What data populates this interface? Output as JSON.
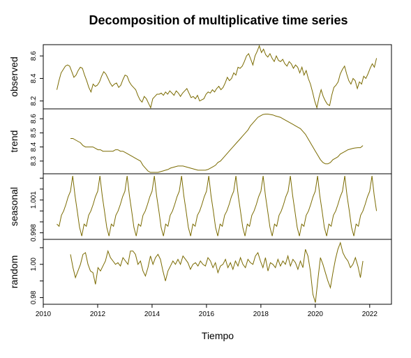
{
  "chart_data": {
    "type": "line",
    "title": "Decomposition of multiplicative time series",
    "xlabel": "Tiempo",
    "line_color": "#7a6a00",
    "x_ticks": [
      2010,
      2012,
      2014,
      2016,
      2018,
      2020,
      2022
    ],
    "xlim": [
      2010,
      2022.8
    ],
    "panels": [
      {
        "name": "observed",
        "ylim": [
          8.13,
          8.7
        ],
        "y_ticks": [
          8.2,
          8.4,
          8.6
        ],
        "y_tick_labels": [
          "8.2",
          "8.4",
          "8.6"
        ],
        "start": 2010.5,
        "end": 2022.25,
        "points": [
          8.3,
          8.38,
          8.45,
          8.48,
          8.51,
          8.52,
          8.51,
          8.46,
          8.41,
          8.43,
          8.47,
          8.5,
          8.49,
          8.43,
          8.38,
          8.32,
          8.28,
          8.35,
          8.33,
          8.34,
          8.37,
          8.42,
          8.46,
          8.44,
          8.4,
          8.36,
          8.33,
          8.35,
          8.36,
          8.32,
          8.34,
          8.39,
          8.43,
          8.42,
          8.37,
          8.34,
          8.32,
          8.3,
          8.25,
          8.21,
          8.19,
          8.24,
          8.22,
          8.18,
          8.14,
          8.22,
          8.24,
          8.26,
          8.26,
          8.27,
          8.25,
          8.28,
          8.26,
          8.29,
          8.27,
          8.25,
          8.29,
          8.27,
          8.24,
          8.27,
          8.29,
          8.31,
          8.27,
          8.23,
          8.24,
          8.22,
          8.25,
          8.2,
          8.21,
          8.22,
          8.26,
          8.28,
          8.27,
          8.3,
          8.28,
          8.31,
          8.33,
          8.3,
          8.32,
          8.36,
          8.41,
          8.38,
          8.4,
          8.45,
          8.43,
          8.5,
          8.49,
          8.51,
          8.55,
          8.6,
          8.62,
          8.57,
          8.52,
          8.6,
          8.64,
          8.69,
          8.63,
          8.66,
          8.61,
          8.59,
          8.62,
          8.58,
          8.55,
          8.6,
          8.56,
          8.55,
          8.57,
          8.53,
          8.51,
          8.55,
          8.53,
          8.49,
          8.52,
          8.5,
          8.45,
          8.5,
          8.43,
          8.47,
          8.4,
          8.35,
          8.28,
          8.2,
          8.14,
          8.23,
          8.3,
          8.24,
          8.2,
          8.17,
          8.16,
          8.25,
          8.32,
          8.34,
          8.37,
          8.44,
          8.48,
          8.51,
          8.44,
          8.38,
          8.35,
          8.4,
          8.38,
          8.31,
          8.37,
          8.35,
          8.42,
          8.4,
          8.44,
          8.49,
          8.53,
          8.5,
          8.58
        ]
      },
      {
        "name": "trend",
        "ylim": [
          8.21,
          8.67
        ],
        "y_ticks": [
          8.3,
          8.4,
          8.5,
          8.6
        ],
        "y_tick_labels": [
          "8.3",
          "8.4",
          "8.5",
          "8.6"
        ],
        "start": 2011.0,
        "end": 2021.75,
        "points": [
          8.46,
          8.46,
          8.45,
          8.44,
          8.43,
          8.41,
          8.4,
          8.4,
          8.4,
          8.4,
          8.39,
          8.38,
          8.38,
          8.37,
          8.37,
          8.37,
          8.37,
          8.37,
          8.38,
          8.38,
          8.37,
          8.37,
          8.36,
          8.35,
          8.34,
          8.33,
          8.32,
          8.31,
          8.3,
          8.27,
          8.25,
          8.23,
          8.22,
          8.22,
          8.22,
          8.22,
          8.225,
          8.23,
          8.235,
          8.24,
          8.25,
          8.255,
          8.26,
          8.265,
          8.265,
          8.265,
          8.26,
          8.255,
          8.25,
          8.245,
          8.24,
          8.235,
          8.235,
          8.235,
          8.235,
          8.24,
          8.25,
          8.26,
          8.27,
          8.29,
          8.3,
          8.32,
          8.34,
          8.36,
          8.38,
          8.4,
          8.42,
          8.44,
          8.46,
          8.48,
          8.5,
          8.52,
          8.55,
          8.57,
          8.59,
          8.61,
          8.62,
          8.63,
          8.633,
          8.633,
          8.63,
          8.627,
          8.62,
          8.615,
          8.61,
          8.6,
          8.59,
          8.58,
          8.57,
          8.56,
          8.55,
          8.54,
          8.53,
          8.51,
          8.49,
          8.46,
          8.43,
          8.4,
          8.37,
          8.34,
          8.31,
          8.29,
          8.28,
          8.28,
          8.29,
          8.31,
          8.32,
          8.33,
          8.35,
          8.36,
          8.37,
          8.38,
          8.385,
          8.39,
          8.393,
          8.395,
          8.395,
          8.41
        ]
      },
      {
        "name": "seasonal",
        "ylim": [
          0.9974,
          1.0034
        ],
        "y_ticks": [
          0.998,
          0.999,
          1.0,
          1.001,
          1.002,
          1.003
        ],
        "y_tick_labels": [
          "0.998",
          "",
          "",
          "1.001",
          "",
          ""
        ],
        "start": 2010.5,
        "end": 2022.25,
        "cycle": [
          0.9988,
          0.9986,
          0.9996,
          1.0,
          1.0006,
          1.0013,
          1.0018,
          1.0032,
          1.0014,
          1.0,
          0.9985,
          0.9977
        ]
      },
      {
        "name": "random",
        "ylim": [
          0.976,
          1.015
        ],
        "y_ticks": [
          0.98,
          0.99,
          1.0,
          1.01
        ],
        "y_tick_labels": [
          "0.98",
          "",
          "1.00",
          ""
        ],
        "start": 2011.0,
        "end": 2021.75,
        "points": [
          1.006,
          0.998,
          0.992,
          0.996,
          1.0,
          1.006,
          1.007,
          1.0,
          0.996,
          0.995,
          0.988,
          0.998,
          0.996,
          0.999,
          1.002,
          1.008,
          1.004,
          1.002,
          1.0,
          1.001,
          0.999,
          1.004,
          1.002,
          1.0,
          1.008,
          1.008,
          1.006,
          1.0,
          1.002,
          0.996,
          0.993,
          0.998,
          1.005,
          1.0,
          1.004,
          1.006,
          1.003,
          0.996,
          0.99,
          0.996,
          0.999,
          1.002,
          1.0,
          1.003,
          1.0,
          1.005,
          1.003,
          1.001,
          0.997,
          1.0,
          1.001,
          0.999,
          1.002,
          1.0,
          0.999,
          1.004,
          1.002,
          0.998,
          1.001,
          0.995,
          0.999,
          1.0,
          1.003,
          0.998,
          1.001,
          0.997,
          1.002,
          0.999,
          1.004,
          1.0,
          0.998,
          1.003,
          1.001,
          1.0,
          1.005,
          1.007,
          1.002,
          0.998,
          1.004,
          0.996,
          1.001,
          1.0,
          0.998,
          1.003,
          0.999,
          1.002,
          1.0,
          1.005,
          0.999,
          1.003,
          1.001,
          0.997,
          1.002,
          0.998,
          1.009,
          1.005,
          0.996,
          0.982,
          0.977,
          0.991,
          1.004,
          1.0,
          0.995,
          0.99,
          0.986,
          0.995,
          1.003,
          1.009,
          1.013,
          1.007,
          1.004,
          1.002,
          0.998,
          1.0,
          1.004,
          0.999,
          0.992,
          1.002
        ]
      }
    ]
  }
}
